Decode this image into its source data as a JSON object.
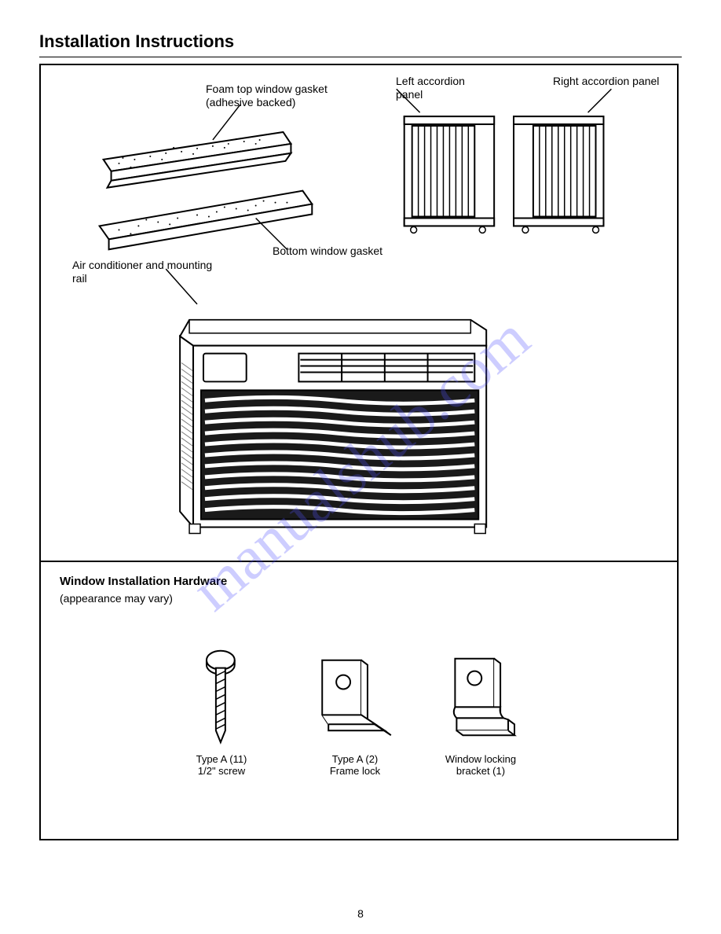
{
  "title": "Installation Instructions",
  "top": {
    "foam_top_seal": "Foam top window gasket\n(adhesive backed)",
    "foam_bottom_seal": "Bottom window gasket",
    "panel_left": "Left accordion panel",
    "panel_right": "Right accordion panel",
    "ac_unit": "Air conditioner and mounting rail"
  },
  "hardware": {
    "title": "Window Installation Hardware",
    "subtitle": "(appearance may vary)",
    "screw": "Type A (11)\n1/2\" screw",
    "bracket_l": "Type A (2)\nFrame lock",
    "bracket_z": "Window locking\nbracket (1)"
  },
  "page_number": "8",
  "watermark": "manualshub.com",
  "colors": {
    "stroke": "#000000",
    "stroke_light": "#808080",
    "fill": "#ffffff",
    "shade": "#1a1a1a",
    "watermark": "#5050ff"
  }
}
